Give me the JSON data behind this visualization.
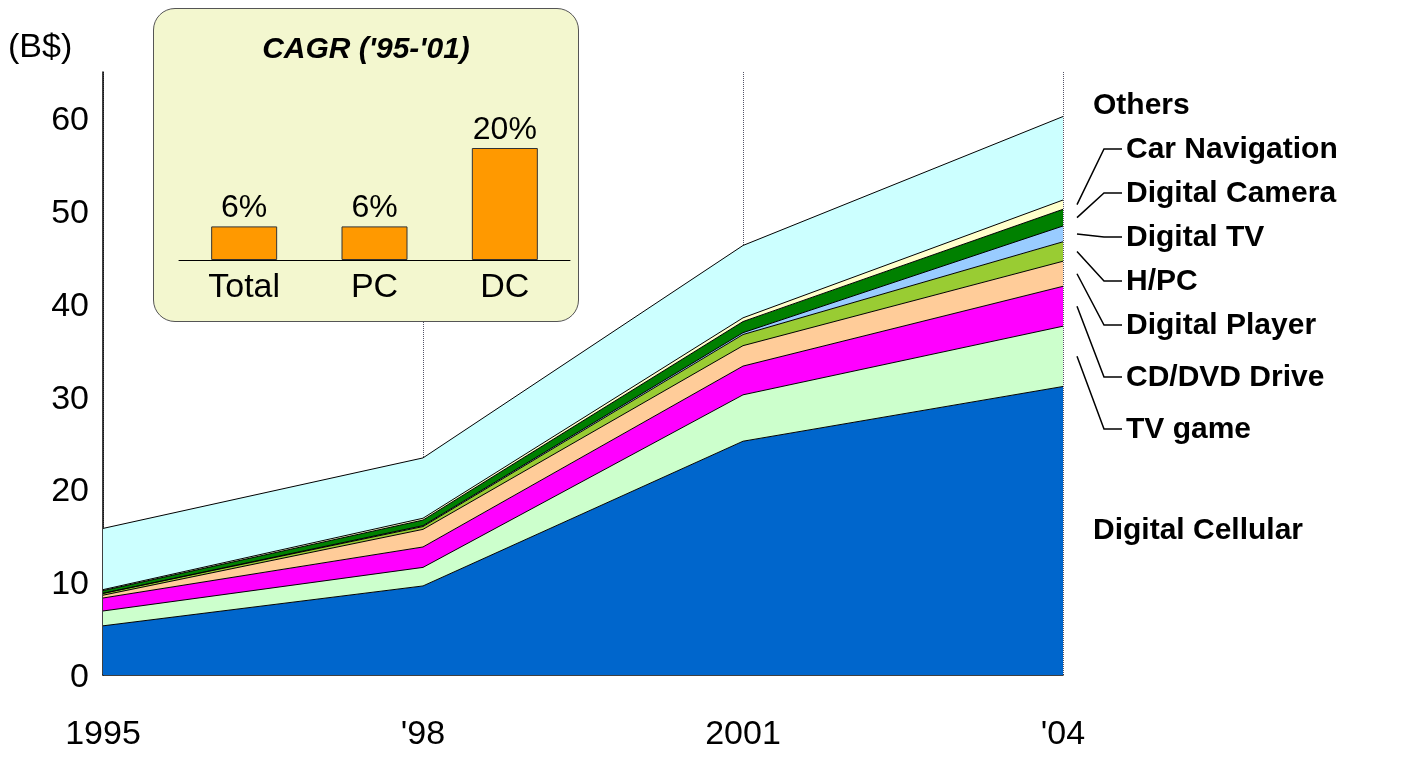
{
  "chart_data": [
    {
      "type": "area",
      "stacked": true,
      "ylabel": "(B$)",
      "categories": [
        "1995",
        "'98",
        "2001",
        "'04"
      ],
      "ylim": [
        0,
        65
      ],
      "yticks": [
        0,
        10,
        20,
        30,
        40,
        50,
        60
      ],
      "grid": "x",
      "legend": "right",
      "marker": "none",
      "series": [
        {
          "name": "Digital Cellular",
          "color": "#0066cc",
          "values": [
            5.3,
            9.6,
            25.2,
            31.1
          ]
        },
        {
          "name": "TV game",
          "color": "#ccffcc",
          "values": [
            1.6,
            2.0,
            5.0,
            6.5
          ]
        },
        {
          "name": "CD/DVD Drive",
          "color": "#ff00ff",
          "values": [
            1.4,
            2.2,
            3.1,
            4.3
          ]
        },
        {
          "name": "Digital Player",
          "color": "#ffcc99",
          "values": [
            0.3,
            1.9,
            2.2,
            2.7
          ]
        },
        {
          "name": "H/PC",
          "color": "#99cc33",
          "values": [
            0.2,
            0.3,
            1.2,
            2.1
          ]
        },
        {
          "name": "Digital TV",
          "color": "#99ccff",
          "values": [
            0.0,
            0.1,
            0.2,
            1.7
          ]
        },
        {
          "name": "Digital Camera",
          "color": "#008000",
          "values": [
            0.3,
            0.6,
            1.2,
            1.8
          ]
        },
        {
          "name": "Car Navigation",
          "color": "#ffffcc",
          "values": [
            0.1,
            0.2,
            0.4,
            1.0
          ]
        },
        {
          "name": "Others",
          "color": "#ccffff",
          "values": [
            6.6,
            6.5,
            7.8,
            9.0
          ]
        }
      ]
    },
    {
      "type": "bar",
      "title": "CAGR ('95-'01)",
      "categories": [
        "Total",
        "PC",
        "DC"
      ],
      "values": [
        6,
        6,
        20
      ],
      "value_labels": [
        "6%",
        "6%",
        "20%"
      ],
      "color": "#ff9900",
      "legend": false
    }
  ]
}
